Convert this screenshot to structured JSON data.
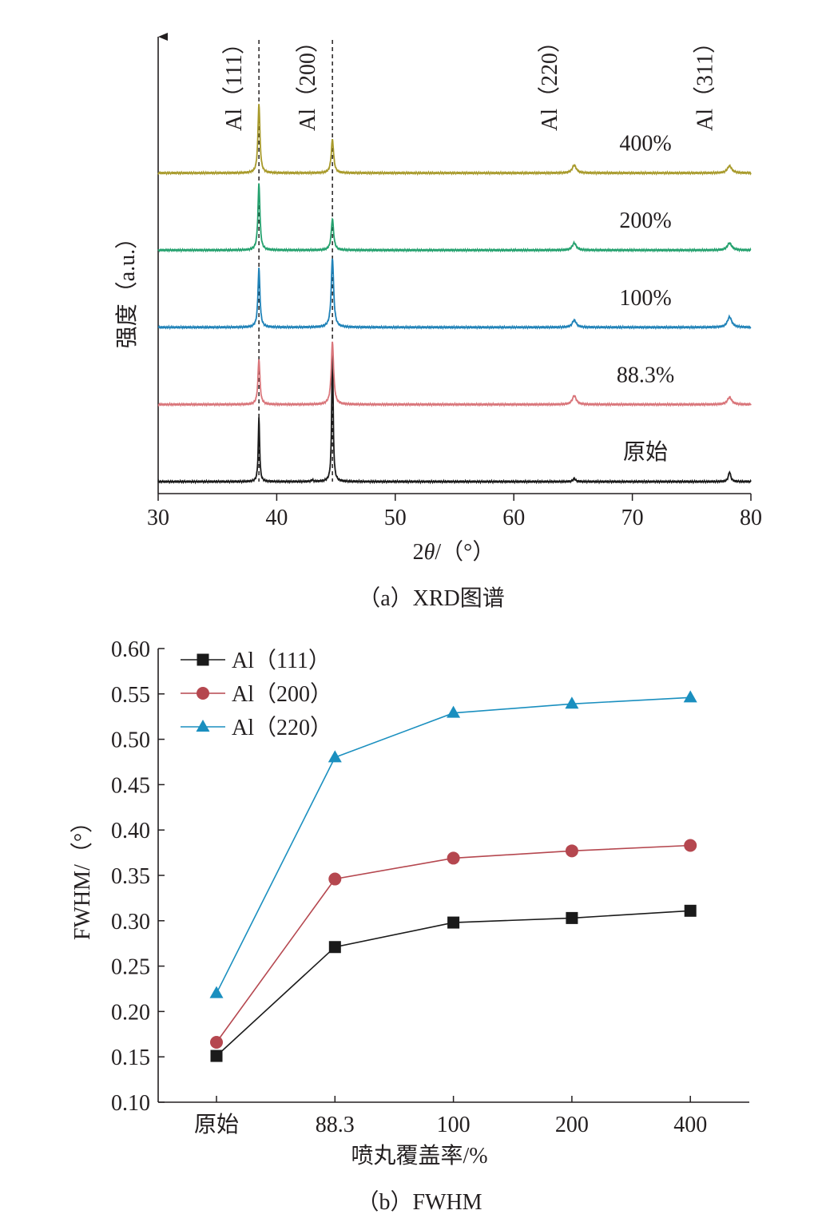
{
  "chart_data": [
    {
      "type": "line",
      "title": "",
      "caption": "（a）XRD图谱",
      "xlabel_prefix": "2",
      "xlabel_theta": "θ",
      "xlabel_suffix": "/（°）",
      "ylabel": "强度（a.u.）",
      "xlim": [
        30,
        80
      ],
      "x_ticks": [
        "30",
        "40",
        "50",
        "60",
        "70",
        "80"
      ],
      "y_ticks": [],
      "grid": false,
      "reference_lines_x": [
        38.5,
        44.7
      ],
      "peak_labels": [
        {
          "text": "Al（111）",
          "x": 38.5
        },
        {
          "text": "Al（200）",
          "x": 44.7
        },
        {
          "text": "Al（220）",
          "x": 65.1
        },
        {
          "text": "Al（311）",
          "x": 78.2
        }
      ],
      "series": [
        {
          "name": "原始",
          "color": "#1a1a1a",
          "baseline": 0,
          "peaks": [
            {
              "x": 38.5,
              "h": 80,
              "w": 0.07
            },
            {
              "x": 44.7,
              "h": 172,
              "w": 0.07
            },
            {
              "x": 65.1,
              "h": 4,
              "w": 0.12
            },
            {
              "x": 78.2,
              "h": 12,
              "w": 0.12
            },
            {
              "x": 43.0,
              "h": 2,
              "w": 0.1
            }
          ]
        },
        {
          "name": "88.3%",
          "color": "#d9757a",
          "baseline": 1.3,
          "peaks": [
            {
              "x": 38.5,
              "h": 57,
              "w": 0.1
            },
            {
              "x": 44.7,
              "h": 78,
              "w": 0.12
            },
            {
              "x": 65.1,
              "h": 11,
              "w": 0.2
            },
            {
              "x": 78.2,
              "h": 9,
              "w": 0.22
            }
          ]
        },
        {
          "name": "100%",
          "color": "#1f82b8",
          "baseline": 2.6,
          "peaks": [
            {
              "x": 38.5,
              "h": 74,
              "w": 0.1
            },
            {
              "x": 44.7,
              "h": 87,
              "w": 0.12
            },
            {
              "x": 65.1,
              "h": 9,
              "w": 0.2
            },
            {
              "x": 78.2,
              "h": 13,
              "w": 0.22
            }
          ]
        },
        {
          "name": "200%",
          "color": "#24a16e",
          "baseline": 3.9,
          "peaks": [
            {
              "x": 38.5,
              "h": 83,
              "w": 0.1
            },
            {
              "x": 44.7,
              "h": 39,
              "w": 0.12
            },
            {
              "x": 65.1,
              "h": 9,
              "w": 0.2
            },
            {
              "x": 78.2,
              "h": 9,
              "w": 0.22
            }
          ]
        },
        {
          "name": "400%",
          "color": "#a89a2b",
          "baseline": 5.2,
          "peaks": [
            {
              "x": 38.5,
              "h": 87,
              "w": 0.1
            },
            {
              "x": 44.7,
              "h": 42,
              "w": 0.12
            },
            {
              "x": 65.1,
              "h": 10,
              "w": 0.2
            },
            {
              "x": 78.2,
              "h": 9,
              "w": 0.22
            }
          ]
        }
      ]
    },
    {
      "type": "line",
      "title": "",
      "caption": "（b）FWHM",
      "xlabel": "喷丸覆盖率/%",
      "ylabel": "FWHM/（°）",
      "categories": [
        "原始",
        "88.3",
        "100",
        "200",
        "400"
      ],
      "ylim": [
        0.1,
        0.6
      ],
      "y_ticks": [
        "0.10",
        "0.15",
        "0.20",
        "0.25",
        "0.30",
        "0.35",
        "0.40",
        "0.45",
        "0.50",
        "0.55",
        "0.60"
      ],
      "grid": false,
      "legend_position": "top-left",
      "series": [
        {
          "name": "Al（111）",
          "color": "#1a1a1a",
          "marker": "square",
          "values": [
            0.151,
            0.271,
            0.298,
            0.303,
            0.311
          ]
        },
        {
          "name": "Al（200）",
          "color": "#b5474f",
          "marker": "circle",
          "values": [
            0.166,
            0.346,
            0.369,
            0.377,
            0.383
          ]
        },
        {
          "name": "Al（220）",
          "color": "#1a8fbf",
          "marker": "triangle",
          "values": [
            0.22,
            0.48,
            0.529,
            0.539,
            0.546
          ]
        }
      ]
    }
  ]
}
